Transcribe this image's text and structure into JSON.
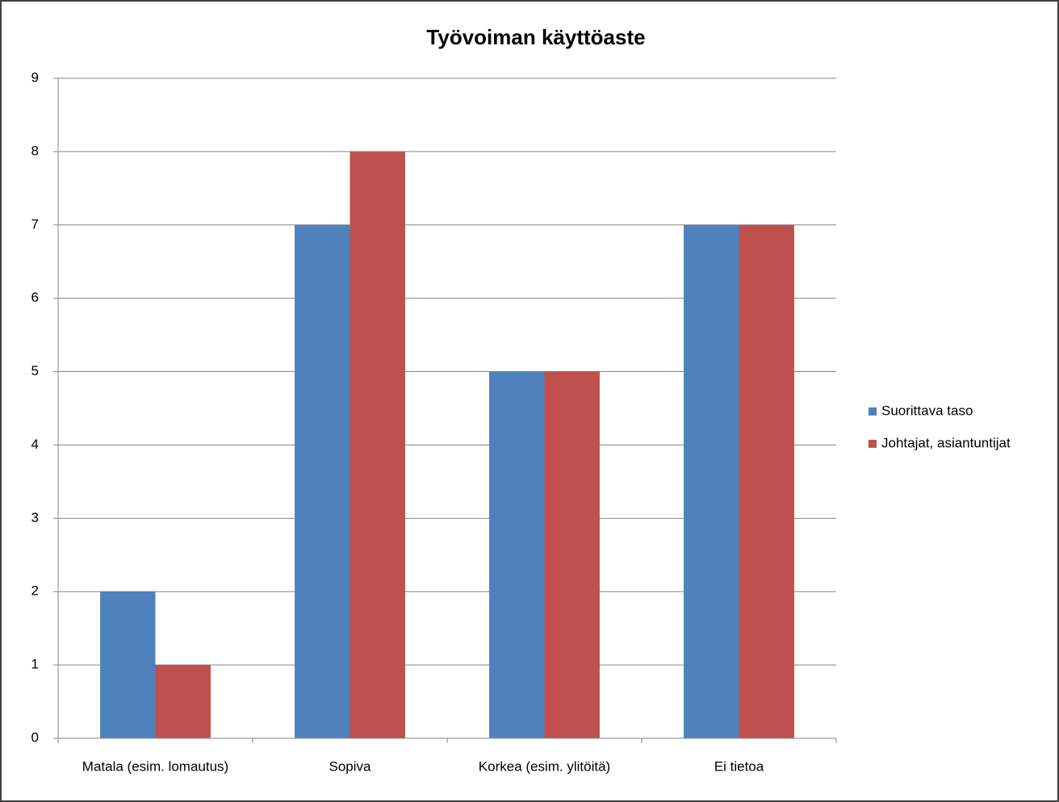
{
  "chart_data": {
    "type": "bar",
    "title": "Työvoiman käyttöaste",
    "categories": [
      "Matala (esim. lomautus)",
      "Sopiva",
      "Korkea (esim. ylitöitä)",
      "Ei tietoa"
    ],
    "series": [
      {
        "name": "Suorittava taso",
        "color": "#4f81bd",
        "values": [
          2,
          7,
          5,
          7
        ]
      },
      {
        "name": "Johtajat, asiantuntijat",
        "color": "#c0504d",
        "values": [
          1,
          8,
          5,
          7
        ]
      }
    ],
    "ylim": [
      0,
      9
    ],
    "yticks": [
      0,
      1,
      2,
      3,
      4,
      5,
      6,
      7,
      8,
      9
    ],
    "grid": true,
    "legend": "right"
  }
}
